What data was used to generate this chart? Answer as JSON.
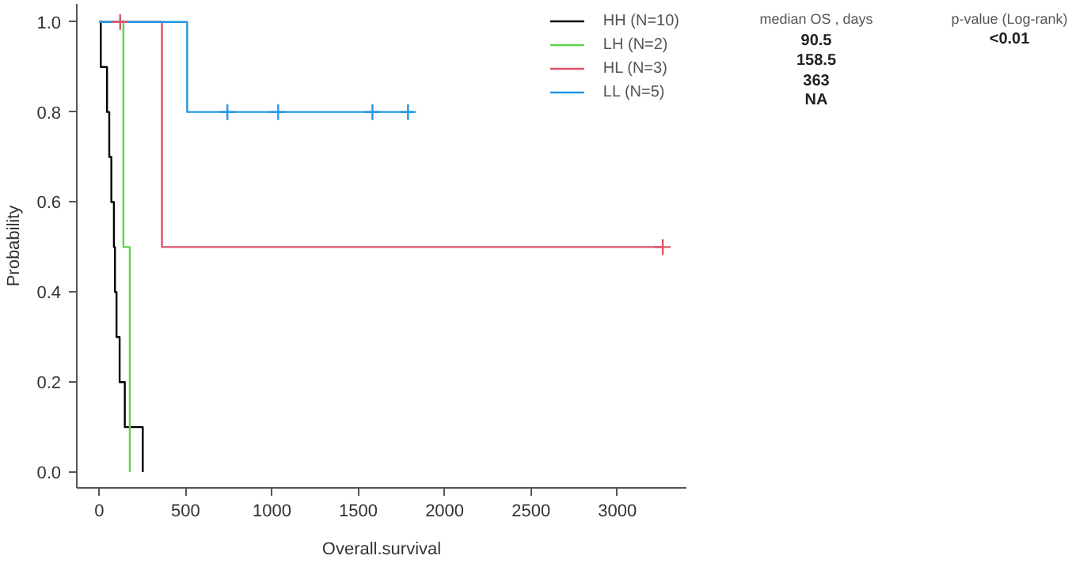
{
  "chart_data": {
    "type": "step",
    "xlabel": "Overall.survival",
    "ylabel": "Probability",
    "xlim": [
      -130,
      3400
    ],
    "ylim": [
      -0.035,
      1.04
    ],
    "xticks": [
      0,
      500,
      1000,
      1500,
      2000,
      2500,
      3000
    ],
    "yticks": [
      {
        "value": 0,
        "label": "0.0"
      },
      {
        "value": 0.2,
        "label": "0.2"
      },
      {
        "value": 0.4,
        "label": "0.4"
      },
      {
        "value": 0.6,
        "label": "0.6"
      },
      {
        "value": 0.8,
        "label": "0.8"
      },
      {
        "value": 1,
        "label": "1.0"
      }
    ],
    "grid": false,
    "legend": "top right",
    "line_style": "solid",
    "series": [
      {
        "name": "HH (N=10)",
        "color": "#000000",
        "x": [
          0,
          9,
          45,
          58,
          70,
          85,
          91,
          100,
          118,
          148,
          252
        ],
        "values": [
          1,
          0.9,
          0.8,
          0.7,
          0.6,
          0.5,
          0.4,
          0.3,
          0.2,
          0.1,
          0
        ]
      },
      {
        "name": "LH (N=2)",
        "color": "#61d04f",
        "x": [
          0,
          140,
          177
        ],
        "values": [
          1,
          0.5,
          0
        ]
      },
      {
        "name": "HL (N=3)",
        "color": "#df536b",
        "x": [
          0,
          363,
          3263
        ],
        "values": [
          1,
          0.5,
          0.5
        ]
      },
      {
        "name": "LL (N=5)",
        "color": "#2297e6",
        "x": [
          0,
          509,
          1820
        ],
        "values": [
          1,
          0.8,
          0.8
        ]
      },
      {
        "color": "#df536b",
        "type": "scatter",
        "marker": "cross",
        "x": [
          121,
          3263
        ],
        "values": [
          1,
          0.5
        ]
      },
      {
        "color": "#2297e6",
        "type": "scatter",
        "marker": "cross",
        "x": [
          742,
          1036,
          1582,
          1788
        ],
        "values": [
          0.8,
          0.8,
          0.8,
          0.8
        ]
      }
    ],
    "annotations": [
      "median OS , days",
      "90.5",
      "158.5",
      "363",
      "NA",
      "p-value (Log-rank)",
      "<0.01"
    ]
  }
}
